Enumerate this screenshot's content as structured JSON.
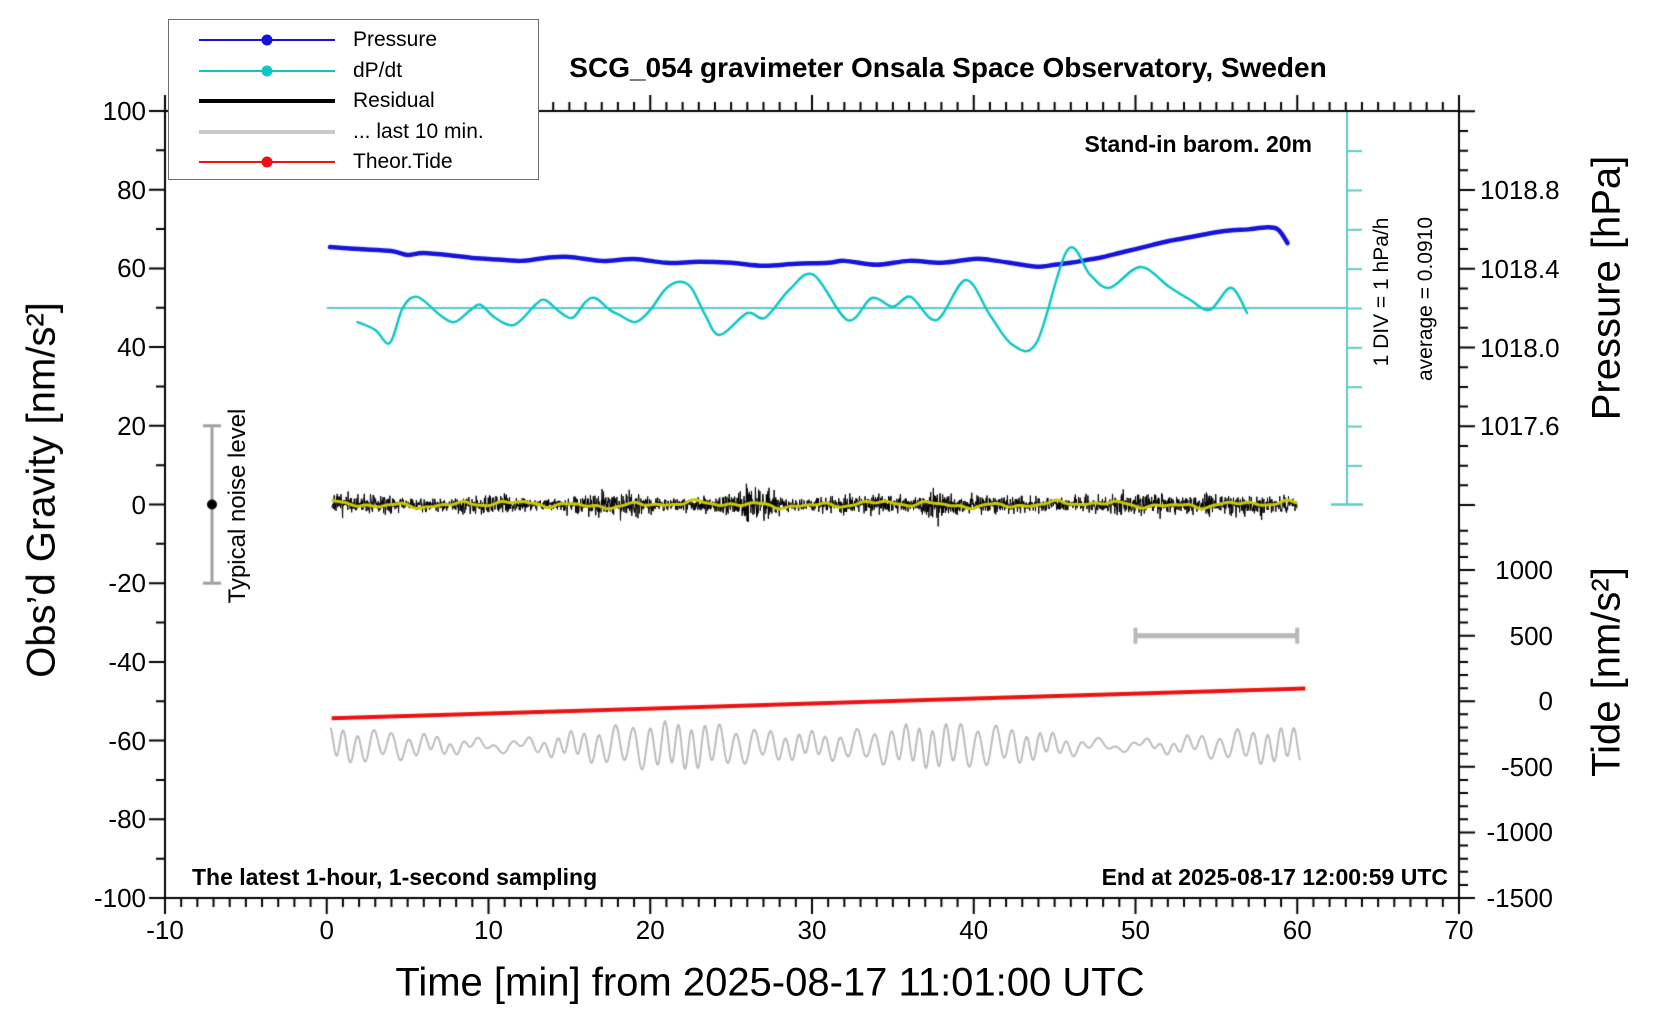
{
  "title": "SCG_054 gravimeter Onsala Space Observatory, Sweden",
  "annotations": {
    "stand_in": "Stand-in barom. 20m",
    "div_scale": "1 DIV = 1 hPa/h",
    "average": "average = 0.0910",
    "noise_level": "Typical noise level",
    "sampling_note": "The latest 1-hour, 1-second sampling",
    "end_note": "End at 2025-08-17 12:00:59 UTC"
  },
  "axes": {
    "x": {
      "label": "Time [min] from 2025-08-17 11:01:00 UTC",
      "range": [
        -10,
        70
      ],
      "major_ticks": [
        -10,
        0,
        10,
        20,
        30,
        40,
        50,
        60,
        70
      ],
      "minor_step_min": 1
    },
    "y_left": {
      "label": "Obs’d Gravity [nm/s²]",
      "range": [
        -100,
        100
      ],
      "major_ticks": [
        100,
        80,
        60,
        40,
        20,
        0,
        -20,
        -40,
        -60,
        -80,
        -100
      ],
      "minor_step": 10
    },
    "y_right_pressure": {
      "label": "Pressure [hPa]",
      "major_ticks": [
        1018.8,
        1018.4,
        1018.0,
        1017.6
      ],
      "minor_step_hpa": 0.1
    },
    "y_right_tide": {
      "label": "Tide [nm/s²]",
      "range": [
        -1500,
        4500
      ],
      "major_ticks": [
        1000,
        500,
        0,
        -500,
        -1000,
        -1500
      ],
      "minor_step": 100
    }
  },
  "legend": {
    "items": [
      {
        "label": "Pressure",
        "color": "#1414dd",
        "thickness": 2,
        "dot": true
      },
      {
        "label": "dP/dt",
        "color": "#0fc6c6",
        "thickness": 2,
        "dot": true
      },
      {
        "label": "Residual",
        "color": "#000000",
        "thickness": 4,
        "dot": false
      },
      {
        "label": "... last 10 min.",
        "color": "#c9c9c9",
        "thickness": 4,
        "dot": false
      },
      {
        "label": "Theor.Tide",
        "color": "#ee1111",
        "thickness": 2,
        "dot": true
      }
    ]
  },
  "colors": {
    "pressure": "#1414dd",
    "dpdt": "#0fc6c6",
    "dpdt_ruler": "#5ecaca",
    "residual": "#000000",
    "residual_smoothed": "#c9c900",
    "last10": "#bcbcbc",
    "tide": "#ee1111",
    "noise_bar": "#a0a0a0",
    "scale_bar": "#b9b9b9"
  },
  "chart_data": {
    "type": "line",
    "xlabel": "Time [min] from 2025-08-17 11:01:00 UTC",
    "x_range_min": [
      -10,
      70
    ],
    "gravity_axis_range": [
      -100,
      100
    ],
    "pressure_axis_ticks_hpa": [
      1018.8,
      1018.4,
      1018.0,
      1017.6
    ],
    "tide_axis_range": [
      -1500,
      4500
    ],
    "series": [
      {
        "name": "Pressure",
        "unit": "hPa",
        "points": [
          [
            0.2,
            1018.51
          ],
          [
            2,
            1018.5
          ],
          [
            4,
            1018.49
          ],
          [
            5,
            1018.47
          ],
          [
            6,
            1018.48
          ],
          [
            8,
            1018.465
          ],
          [
            9,
            1018.455
          ],
          [
            10,
            1018.45
          ],
          [
            12,
            1018.44
          ],
          [
            13.5,
            1018.455
          ],
          [
            15,
            1018.46
          ],
          [
            17,
            1018.44
          ],
          [
            19,
            1018.45
          ],
          [
            21,
            1018.43
          ],
          [
            23,
            1018.435
          ],
          [
            25,
            1018.43
          ],
          [
            27,
            1018.415
          ],
          [
            29,
            1018.425
          ],
          [
            31,
            1018.43
          ],
          [
            32,
            1018.44
          ],
          [
            34,
            1018.42
          ],
          [
            36,
            1018.44
          ],
          [
            38,
            1018.43
          ],
          [
            40,
            1018.45
          ],
          [
            41,
            1018.445
          ],
          [
            43,
            1018.42
          ],
          [
            44,
            1018.41
          ],
          [
            45,
            1018.42
          ],
          [
            46,
            1018.43
          ],
          [
            47,
            1018.445
          ],
          [
            48,
            1018.46
          ],
          [
            49,
            1018.48
          ],
          [
            50,
            1018.5
          ],
          [
            51,
            1018.52
          ],
          [
            52,
            1018.54
          ],
          [
            53,
            1018.555
          ],
          [
            54,
            1018.57
          ],
          [
            55,
            1018.585
          ],
          [
            56,
            1018.595
          ],
          [
            57,
            1018.6
          ],
          [
            58,
            1018.61
          ],
          [
            58.8,
            1018.6
          ],
          [
            59.4,
            1018.53
          ]
        ]
      },
      {
        "name": "dP/dt",
        "unit": "hPa/h",
        "average_hpa_per_h": 0.091,
        "div_scale_hpa_per_h": 1,
        "points": [
          [
            1.9,
            -0.36
          ],
          [
            3.0,
            -0.56
          ],
          [
            3.9,
            -0.89
          ],
          [
            4.7,
            0.0
          ],
          [
            5.6,
            0.28
          ],
          [
            7.0,
            -0.18
          ],
          [
            7.9,
            -0.36
          ],
          [
            8.9,
            -0.05
          ],
          [
            9.5,
            0.08
          ],
          [
            10.4,
            -0.25
          ],
          [
            11.6,
            -0.43
          ],
          [
            12.9,
            0.08
          ],
          [
            13.5,
            0.2
          ],
          [
            14.4,
            -0.1
          ],
          [
            15.2,
            -0.25
          ],
          [
            16.0,
            0.15
          ],
          [
            16.6,
            0.25
          ],
          [
            17.5,
            -0.05
          ],
          [
            18.1,
            -0.18
          ],
          [
            19.1,
            -0.36
          ],
          [
            20.0,
            -0.05
          ],
          [
            20.9,
            0.46
          ],
          [
            21.7,
            0.66
          ],
          [
            22.5,
            0.53
          ],
          [
            23.4,
            -0.18
          ],
          [
            24.3,
            -0.69
          ],
          [
            26.0,
            -0.13
          ],
          [
            27.1,
            -0.25
          ],
          [
            28.6,
            0.46
          ],
          [
            30.1,
            0.84
          ],
          [
            32.2,
            -0.31
          ],
          [
            33.7,
            0.25
          ],
          [
            35.0,
            0.03
          ],
          [
            36.1,
            0.28
          ],
          [
            37.7,
            -0.31
          ],
          [
            39.5,
            0.71
          ],
          [
            41.0,
            -0.18
          ],
          [
            42.4,
            -0.94
          ],
          [
            43.9,
            -0.87
          ],
          [
            45.8,
            1.48
          ],
          [
            47.2,
            0.84
          ],
          [
            48.4,
            0.51
          ],
          [
            50.3,
            1.04
          ],
          [
            52.1,
            0.53
          ],
          [
            53.4,
            0.2
          ],
          [
            54.6,
            -0.05
          ],
          [
            55.9,
            0.51
          ],
          [
            56.9,
            -0.13
          ]
        ]
      },
      {
        "name": "Residual",
        "unit": "nm/s²",
        "description": "zero-mean 1-second noise band",
        "mean": 0,
        "typical_std": 1.1,
        "burst_times_min": [
          26.7,
          37.8
        ],
        "start_min": 0.3,
        "end_min": 60
      },
      {
        "name": "Residual smoothed",
        "unit": "nm/s²",
        "mean": 0,
        "amplitude": 1.1
      },
      {
        "name": "... last 10 min.",
        "unit": "nm/s²",
        "center": -61.3,
        "displayed_period_min": 0.93,
        "amplitude_range": [
          2,
          6
        ],
        "start_min": 0.2,
        "end_min": 60.2
      },
      {
        "name": "Theor.Tide",
        "unit": "nm/s² (tide axis)",
        "points": [
          [
            0.3,
            -130
          ],
          [
            30,
            -18
          ],
          [
            60.5,
            98
          ]
        ]
      }
    ],
    "extras": {
      "noise_error_bar": {
        "x_min": -7.2,
        "gravity_from": -20,
        "gravity_to": 20,
        "dot_at": 0
      },
      "last10_scale_bar": {
        "from_min": 50,
        "to_min": 60,
        "tide_level": 500
      },
      "dpdt_baseline_gravity": 50,
      "dpdt_ruler_x_min": 63.1,
      "dpdt_ruler_divisions": 10
    }
  }
}
